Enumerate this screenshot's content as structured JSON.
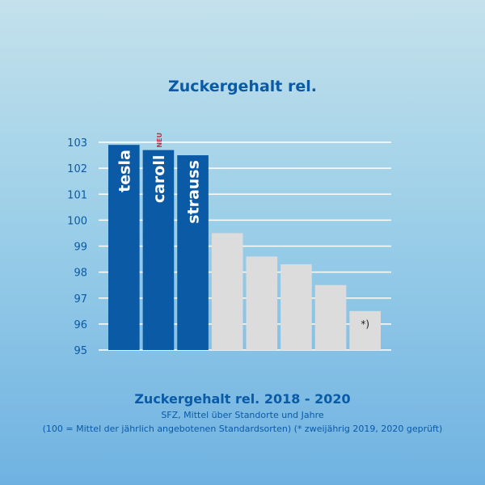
{
  "chart_data": {
    "type": "bar",
    "title": "Zuckergehalt rel.",
    "categories": [
      "tesla",
      "caroll",
      "strauss",
      "",
      "",
      "",
      "",
      ""
    ],
    "values": [
      102.9,
      102.7,
      102.5,
      99.5,
      98.6,
      98.3,
      97.5,
      96.5
    ],
    "highlight": [
      true,
      true,
      true,
      false,
      false,
      false,
      false,
      false
    ],
    "bar_annotations": [
      "",
      "NEU",
      "",
      "",
      "",
      "",
      "",
      "*)"
    ],
    "ylim": [
      95,
      103
    ],
    "yticks": [
      "95",
      "96",
      "97",
      "98",
      "99",
      "100",
      "101",
      "102",
      "103"
    ],
    "grid": true,
    "colors": {
      "highlight": "#0a5aa6",
      "other": "#dcdcdc",
      "grid": "#ffffff",
      "text": "#0a5aa6",
      "new_badge": "#c0304f"
    }
  },
  "caption": {
    "line1": "Zuckergehalt rel. 2018 - 2020",
    "line2": "SFZ, Mittel über Standorte und Jahre",
    "line3": "(100 = Mittel der jährlich angebotenen Standardsorten) (* zweijährig 2019, 2020 geprüft)"
  }
}
